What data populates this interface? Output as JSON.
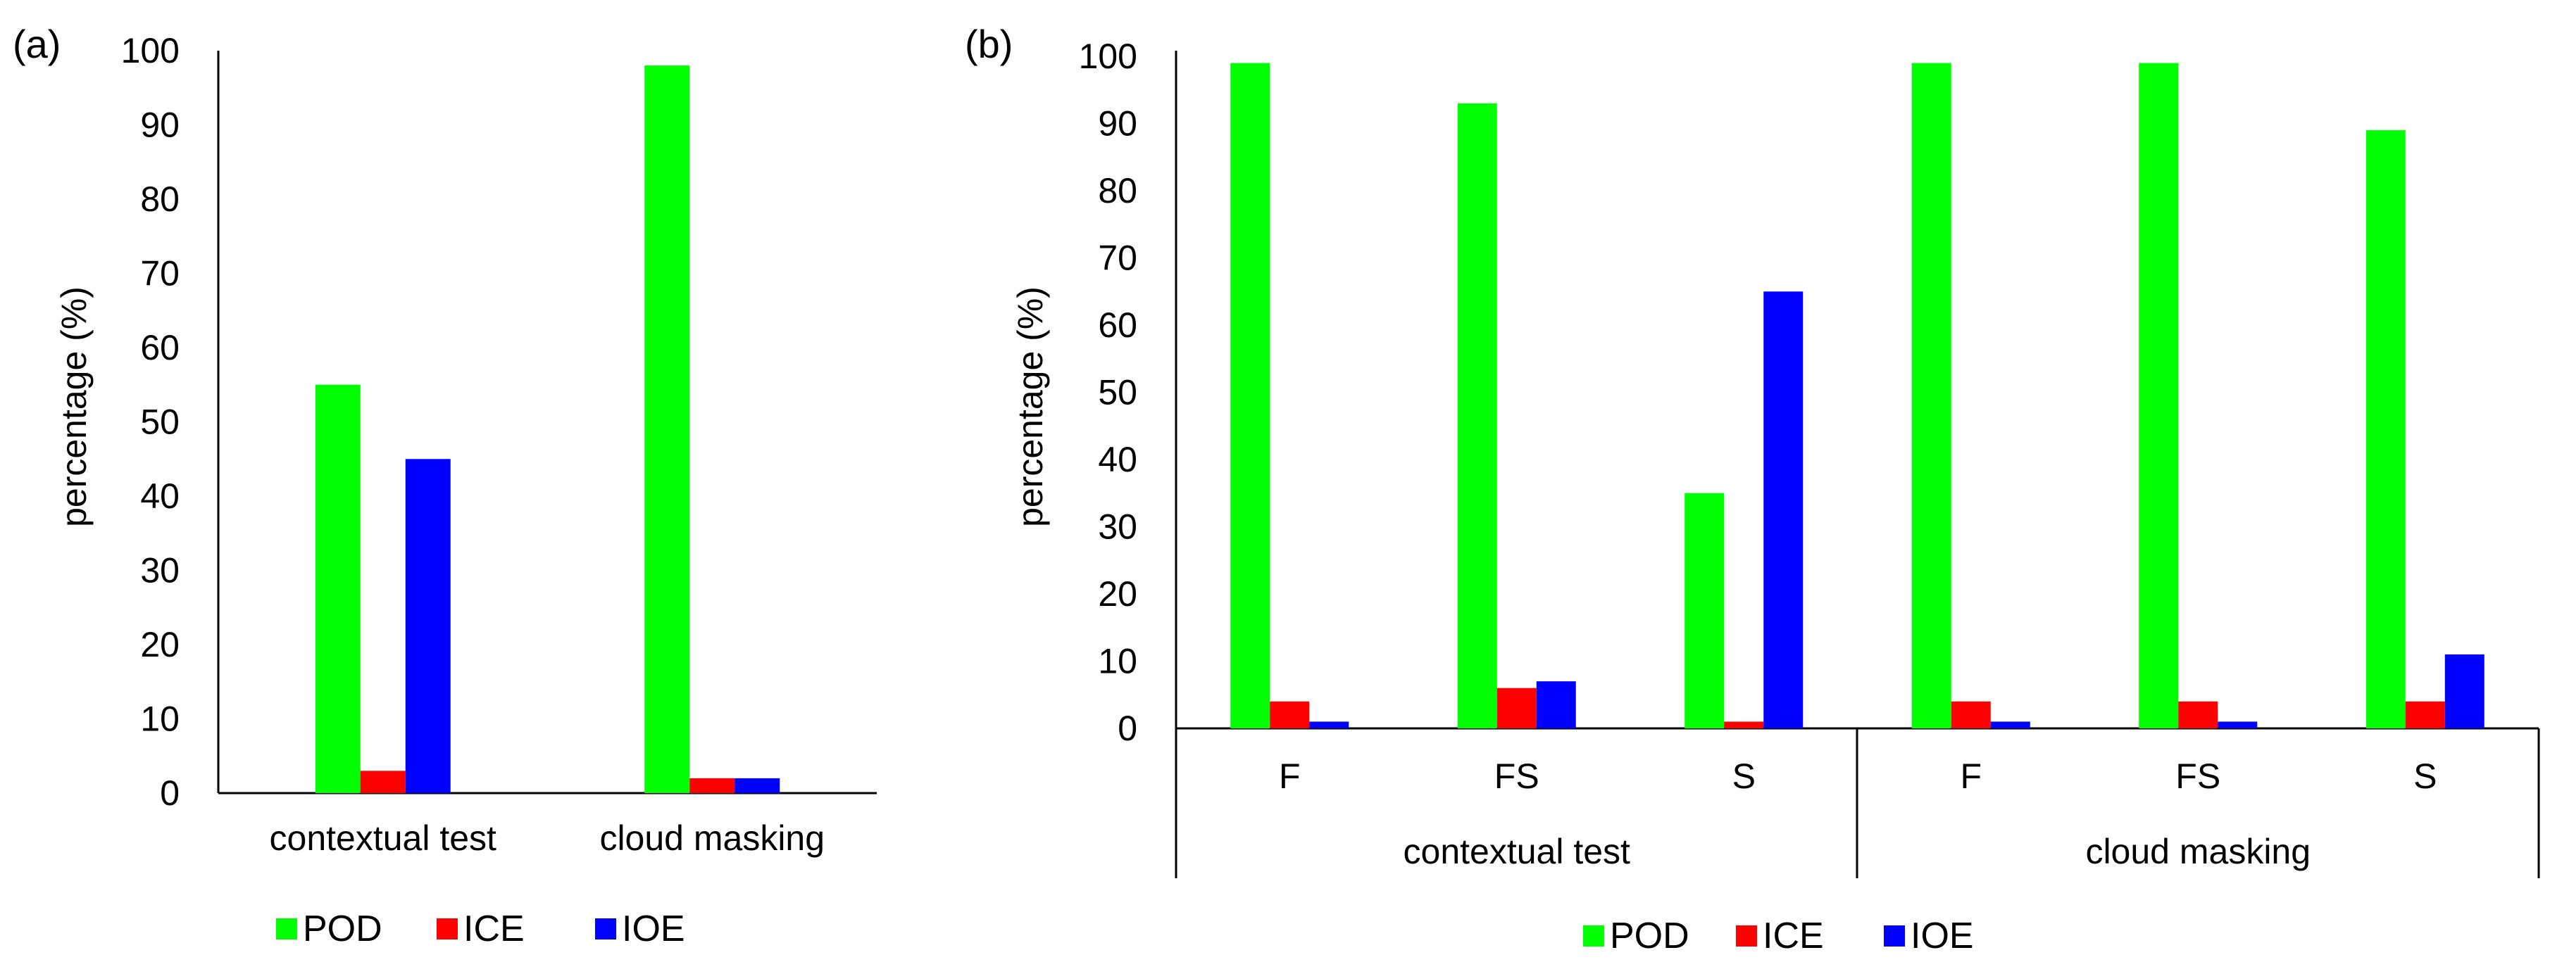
{
  "chart_data": [
    {
      "panel": "(a)",
      "type": "bar",
      "ylabel": "percentage  (%)",
      "xlabel": "",
      "ylim": [
        0,
        100
      ],
      "yticks": [
        "0",
        "10",
        "20",
        "30",
        "40",
        "50",
        "60",
        "70",
        "80",
        "90",
        "100"
      ],
      "categories": [
        "contextual test",
        "cloud masking"
      ],
      "series": [
        {
          "name": "POD",
          "color": "#00ff00",
          "values": [
            55,
            98
          ]
        },
        {
          "name": "ICE",
          "color": "#ff0000",
          "values": [
            3,
            2
          ]
        },
        {
          "name": "IOE",
          "color": "#0000ff",
          "values": [
            45,
            2
          ]
        }
      ],
      "legend": "bottom",
      "grid": false
    },
    {
      "panel": "(b)",
      "type": "bar",
      "ylabel": "percentage  (%)",
      "xlabel": "",
      "ylim": [
        0,
        100
      ],
      "yticks": [
        "0",
        "10",
        "20",
        "30",
        "40",
        "50",
        "60",
        "70",
        "80",
        "90",
        "100"
      ],
      "groups": [
        "contextual test",
        "cloud masking"
      ],
      "categories": [
        "F",
        "FS",
        "S",
        "F",
        "FS",
        "S"
      ],
      "series": [
        {
          "name": "POD",
          "color": "#00ff00",
          "values": [
            99,
            93,
            35,
            99,
            99,
            89
          ]
        },
        {
          "name": "ICE",
          "color": "#ff0000",
          "values": [
            4,
            6,
            1,
            4,
            4,
            4
          ]
        },
        {
          "name": "IOE",
          "color": "#0000ff",
          "values": [
            1,
            7,
            65,
            1,
            1,
            11
          ]
        }
      ],
      "legend": "bottom",
      "grid": false
    }
  ]
}
